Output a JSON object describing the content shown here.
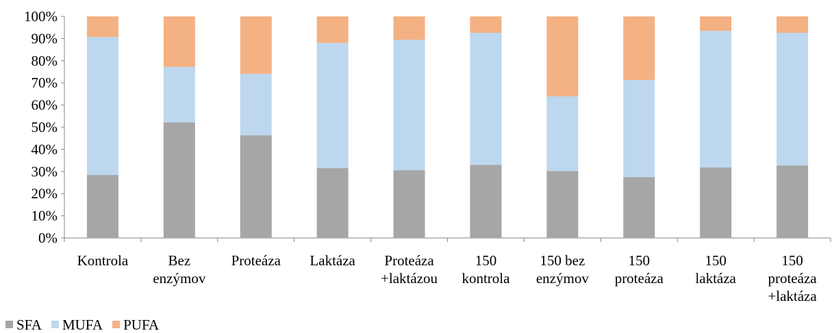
{
  "chart_data": {
    "type": "stacked_bar",
    "categories": [
      "Kontrola",
      "Bez\nenzýmov",
      "Proteáza",
      "Laktáza",
      "Proteáza\n+laktázou",
      "150\nkontrola",
      "150 bez\nenzýmov",
      "150\nproteáza",
      "150\nlaktáza",
      "150\nproteáza\n+laktáza"
    ],
    "series": [
      {
        "name": "SFA",
        "color": "#a6a6a6",
        "values": [
          28.4,
          52.2,
          46.3,
          31.5,
          30.6,
          33.0,
          30.2,
          27.5,
          31.8,
          32.7
        ]
      },
      {
        "name": "MUFA",
        "color": "#bdd7ee",
        "values": [
          62.3,
          25.0,
          27.8,
          56.5,
          58.9,
          59.6,
          33.7,
          43.8,
          61.7,
          59.9
        ]
      },
      {
        "name": "PUFA",
        "color": "#f4b183",
        "values": [
          9.3,
          22.8,
          25.9,
          12.0,
          10.5,
          7.4,
          36.1,
          28.7,
          6.5,
          7.4
        ]
      }
    ],
    "ylim": [
      0,
      100
    ],
    "yticks": [
      {
        "value": 0,
        "label": "0%"
      },
      {
        "value": 10,
        "label": "10%"
      },
      {
        "value": 20,
        "label": "20%"
      },
      {
        "value": 30,
        "label": "30%"
      },
      {
        "value": 40,
        "label": "40%"
      },
      {
        "value": 50,
        "label": "50%"
      },
      {
        "value": 60,
        "label": "60%"
      },
      {
        "value": 70,
        "label": "70%"
      },
      {
        "value": 80,
        "label": "80%"
      },
      {
        "value": 90,
        "label": "90%"
      },
      {
        "value": 100,
        "label": "100%"
      }
    ],
    "legend": "bottom-left"
  }
}
